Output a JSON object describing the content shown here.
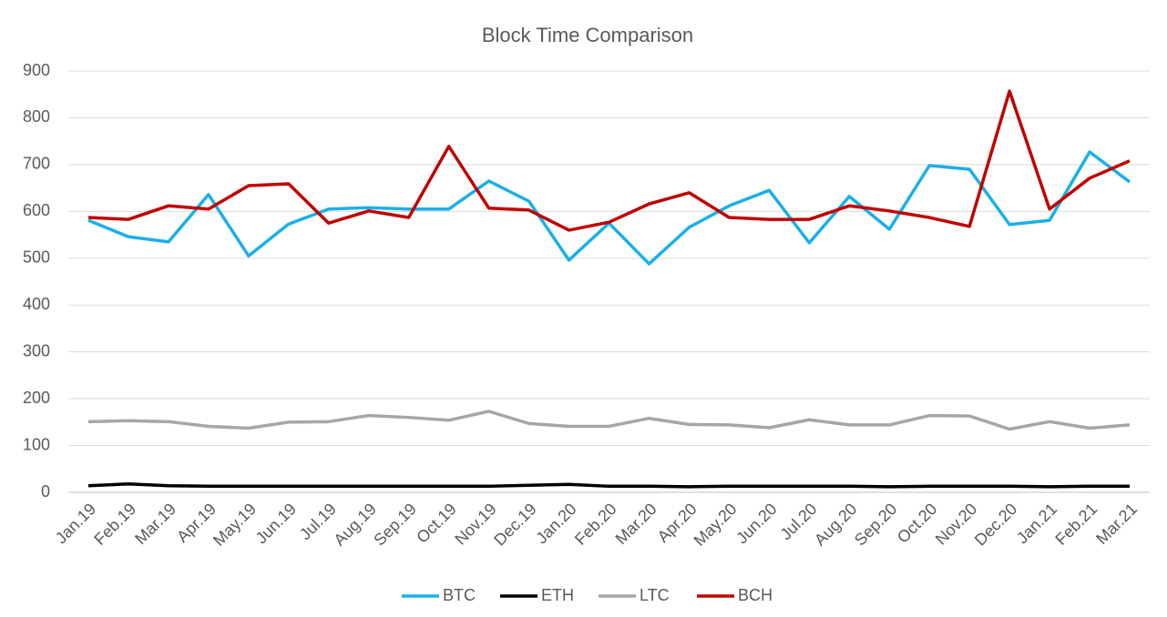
{
  "chart_data": {
    "type": "line",
    "title": "Block Time Comparison",
    "categories": [
      "Jan.19",
      "Feb.19",
      "Mar.19",
      "Apr.19",
      "May.19",
      "Jun.19",
      "Jul.19",
      "Aug.19",
      "Sep.19",
      "Oct.19",
      "Nov.19",
      "Dec.19",
      "Jan.20",
      "Feb.20",
      "Mar.20",
      "Apr.20",
      "May.20",
      "Jun.20",
      "Jul.20",
      "Aug.20",
      "Sep.20",
      "Oct.20",
      "Nov.20",
      "Dec.20",
      "Jan.21",
      "Feb.21",
      "Mar.21"
    ],
    "series": [
      {
        "name": "BTC",
        "color": "#1ab0e8",
        "values": [
          581,
          546,
          535,
          636,
          505,
          573,
          605,
          608,
          605,
          605,
          665,
          622,
          496,
          575,
          488,
          566,
          612,
          645,
          533,
          632,
          562,
          698,
          690,
          572,
          581,
          727,
          663
        ]
      },
      {
        "name": "ETH",
        "color": "#000000",
        "values": [
          14,
          18,
          14,
          13,
          13,
          13,
          13,
          13,
          13,
          13,
          13,
          15,
          17,
          13,
          13,
          12,
          13,
          13,
          13,
          13,
          12,
          13,
          13,
          13,
          12,
          13,
          13
        ]
      },
      {
        "name": "LTC",
        "color": "#a6a6a6",
        "values": [
          151,
          153,
          151,
          141,
          137,
          150,
          151,
          164,
          160,
          154,
          173,
          147,
          141,
          141,
          158,
          145,
          144,
          138,
          155,
          144,
          144,
          164,
          163,
          135,
          151,
          137,
          144
        ]
      },
      {
        "name": "BCH",
        "color": "#c00000",
        "values": [
          587,
          583,
          612,
          605,
          655,
          659,
          575,
          601,
          587,
          739,
          607,
          603,
          560,
          577,
          616,
          640,
          587,
          583,
          583,
          612,
          601,
          587,
          568,
          857,
          605,
          671,
          708
        ]
      }
    ],
    "ylim": [
      0,
      900
    ],
    "yticks": [
      0,
      100,
      200,
      300,
      400,
      500,
      600,
      700,
      800,
      900
    ],
    "grid": true,
    "legend": "bottom"
  }
}
